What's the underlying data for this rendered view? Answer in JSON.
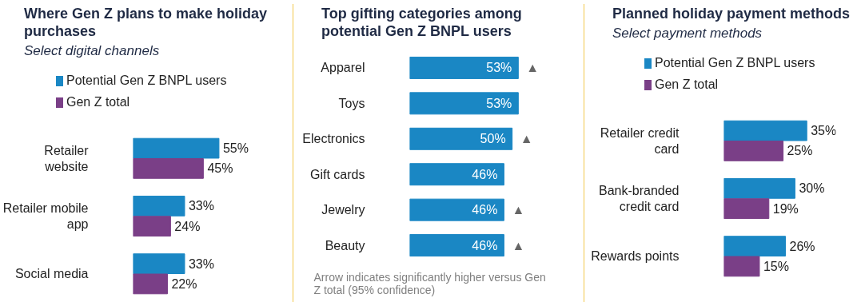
{
  "chart_data": [
    {
      "type": "bar",
      "orientation": "horizontal",
      "title": "Where Gen Z plans to make holiday purchases",
      "subtitle": "Select digital channels",
      "categories": [
        "Retailer website",
        "Retailer mobile app",
        "Social media"
      ],
      "legend": "top left",
      "tick_labels": "y",
      "series": [
        {
          "name": "Potential Gen Z BNPL users",
          "color": "#1a87c4",
          "values": [
            55,
            33,
            33
          ],
          "value_labels": [
            "55%",
            "33%",
            "33%"
          ]
        },
        {
          "name": "Gen Z total",
          "color": "#7a3f87",
          "values": [
            45,
            24,
            22
          ],
          "value_labels": [
            "45%",
            "24%",
            "22%"
          ]
        }
      ]
    },
    {
      "type": "bar",
      "orientation": "horizontal",
      "title": "Top gifting categories among potential Gen Z BNPL users",
      "categories": [
        "Apparel",
        "Toys",
        "Electronics",
        "Gift cards",
        "Jewelry",
        "Beauty"
      ],
      "tick_labels": "y",
      "series": [
        {
          "color": "#1a87c4",
          "values": [
            53,
            53,
            50,
            46,
            46,
            46
          ],
          "value_labels": [
            "53%",
            "53%",
            "50%",
            "46%",
            "46%",
            "46%"
          ]
        }
      ],
      "annotations": [
        {
          "text": "▲",
          "x": 53,
          "y": "Apparel"
        },
        {
          "text": "▲",
          "x": 50,
          "y": "Electronics"
        },
        {
          "text": "▲",
          "x": 46,
          "y": "Jewelry"
        },
        {
          "text": "▲",
          "x": 46,
          "y": "Beauty"
        },
        "Arrow indicates significantly higher versus Gen Z total (95% confidence)"
      ]
    },
    {
      "type": "bar",
      "orientation": "horizontal",
      "title": "Planned holiday payment methods",
      "subtitle": "Select payment methods",
      "categories": [
        "Retailer credit card",
        "Bank-branded credit card",
        "Rewards points"
      ],
      "legend": "top left",
      "tick_labels": "y",
      "series": [
        {
          "name": "Potential Gen Z BNPL users",
          "color": "#1a87c4",
          "values": [
            35,
            30,
            26
          ],
          "value_labels": [
            "35%",
            "30%",
            "26%"
          ]
        },
        {
          "name": "Gen Z total",
          "color": "#7a3f87",
          "values": [
            25,
            19,
            15
          ],
          "value_labels": [
            "25%",
            "19%",
            "15%"
          ]
        }
      ]
    }
  ]
}
